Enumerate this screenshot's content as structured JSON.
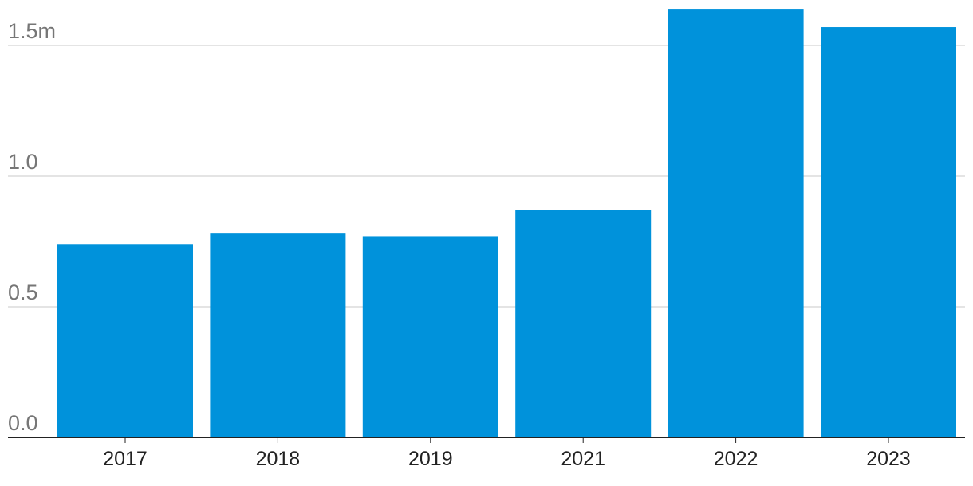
{
  "chart_data": {
    "type": "bar",
    "categories": [
      "2017",
      "2018",
      "2019",
      "2021",
      "2022",
      "2023"
    ],
    "values": [
      0.74,
      0.78,
      0.77,
      0.87,
      1.64,
      1.57
    ],
    "yticks": [
      {
        "value": 0.0,
        "label": "0.0"
      },
      {
        "value": 0.5,
        "label": "0.5"
      },
      {
        "value": 1.0,
        "label": "1.0"
      },
      {
        "value": 1.5,
        "label": "1.5m"
      }
    ],
    "ylim": [
      0,
      1.5
    ],
    "grid": true,
    "bar_color": "#0092DB",
    "title": "",
    "xlabel": "",
    "ylabel": ""
  }
}
